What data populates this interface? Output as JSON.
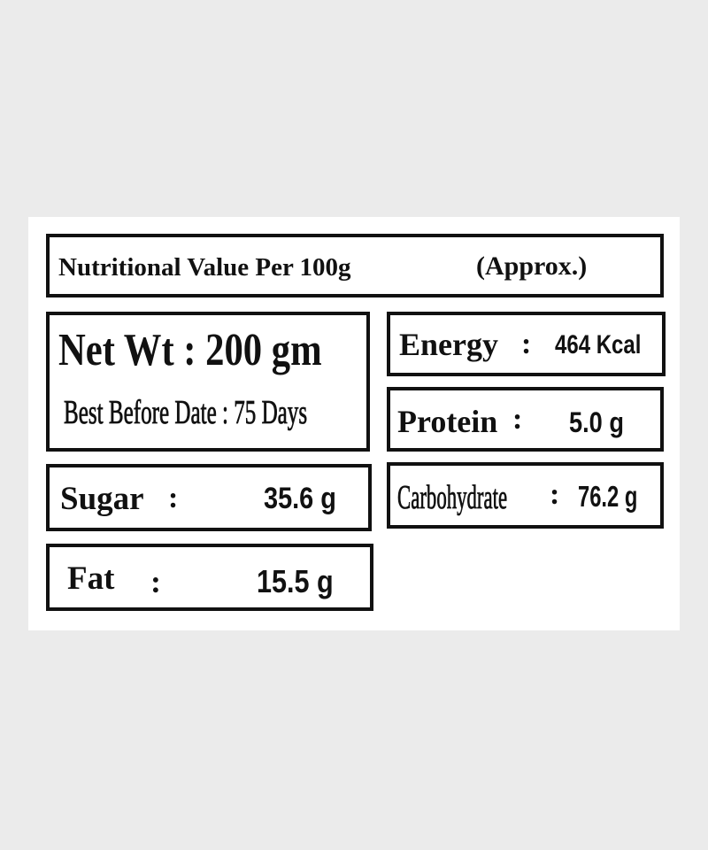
{
  "header": {
    "title": "Nutritional Value Per 100g",
    "note": "(Approx.)"
  },
  "product": {
    "net_weight": "Net Wt : 200 gm",
    "best_before": "Best Before Date : 75 Days"
  },
  "nutrients": [
    {
      "label": "Energy",
      "separator": ":",
      "value": "464 Kcal"
    },
    {
      "label": "Protein",
      "separator": ":",
      "value": "5.0 g"
    },
    {
      "label": "Sugar",
      "separator": ":",
      "value": "35.6 g"
    },
    {
      "label": "Carbohydrate",
      "separator": ":",
      "value": "76.2 g"
    },
    {
      "label": "Fat",
      "separator": ":",
      "value": "15.5 g"
    }
  ]
}
